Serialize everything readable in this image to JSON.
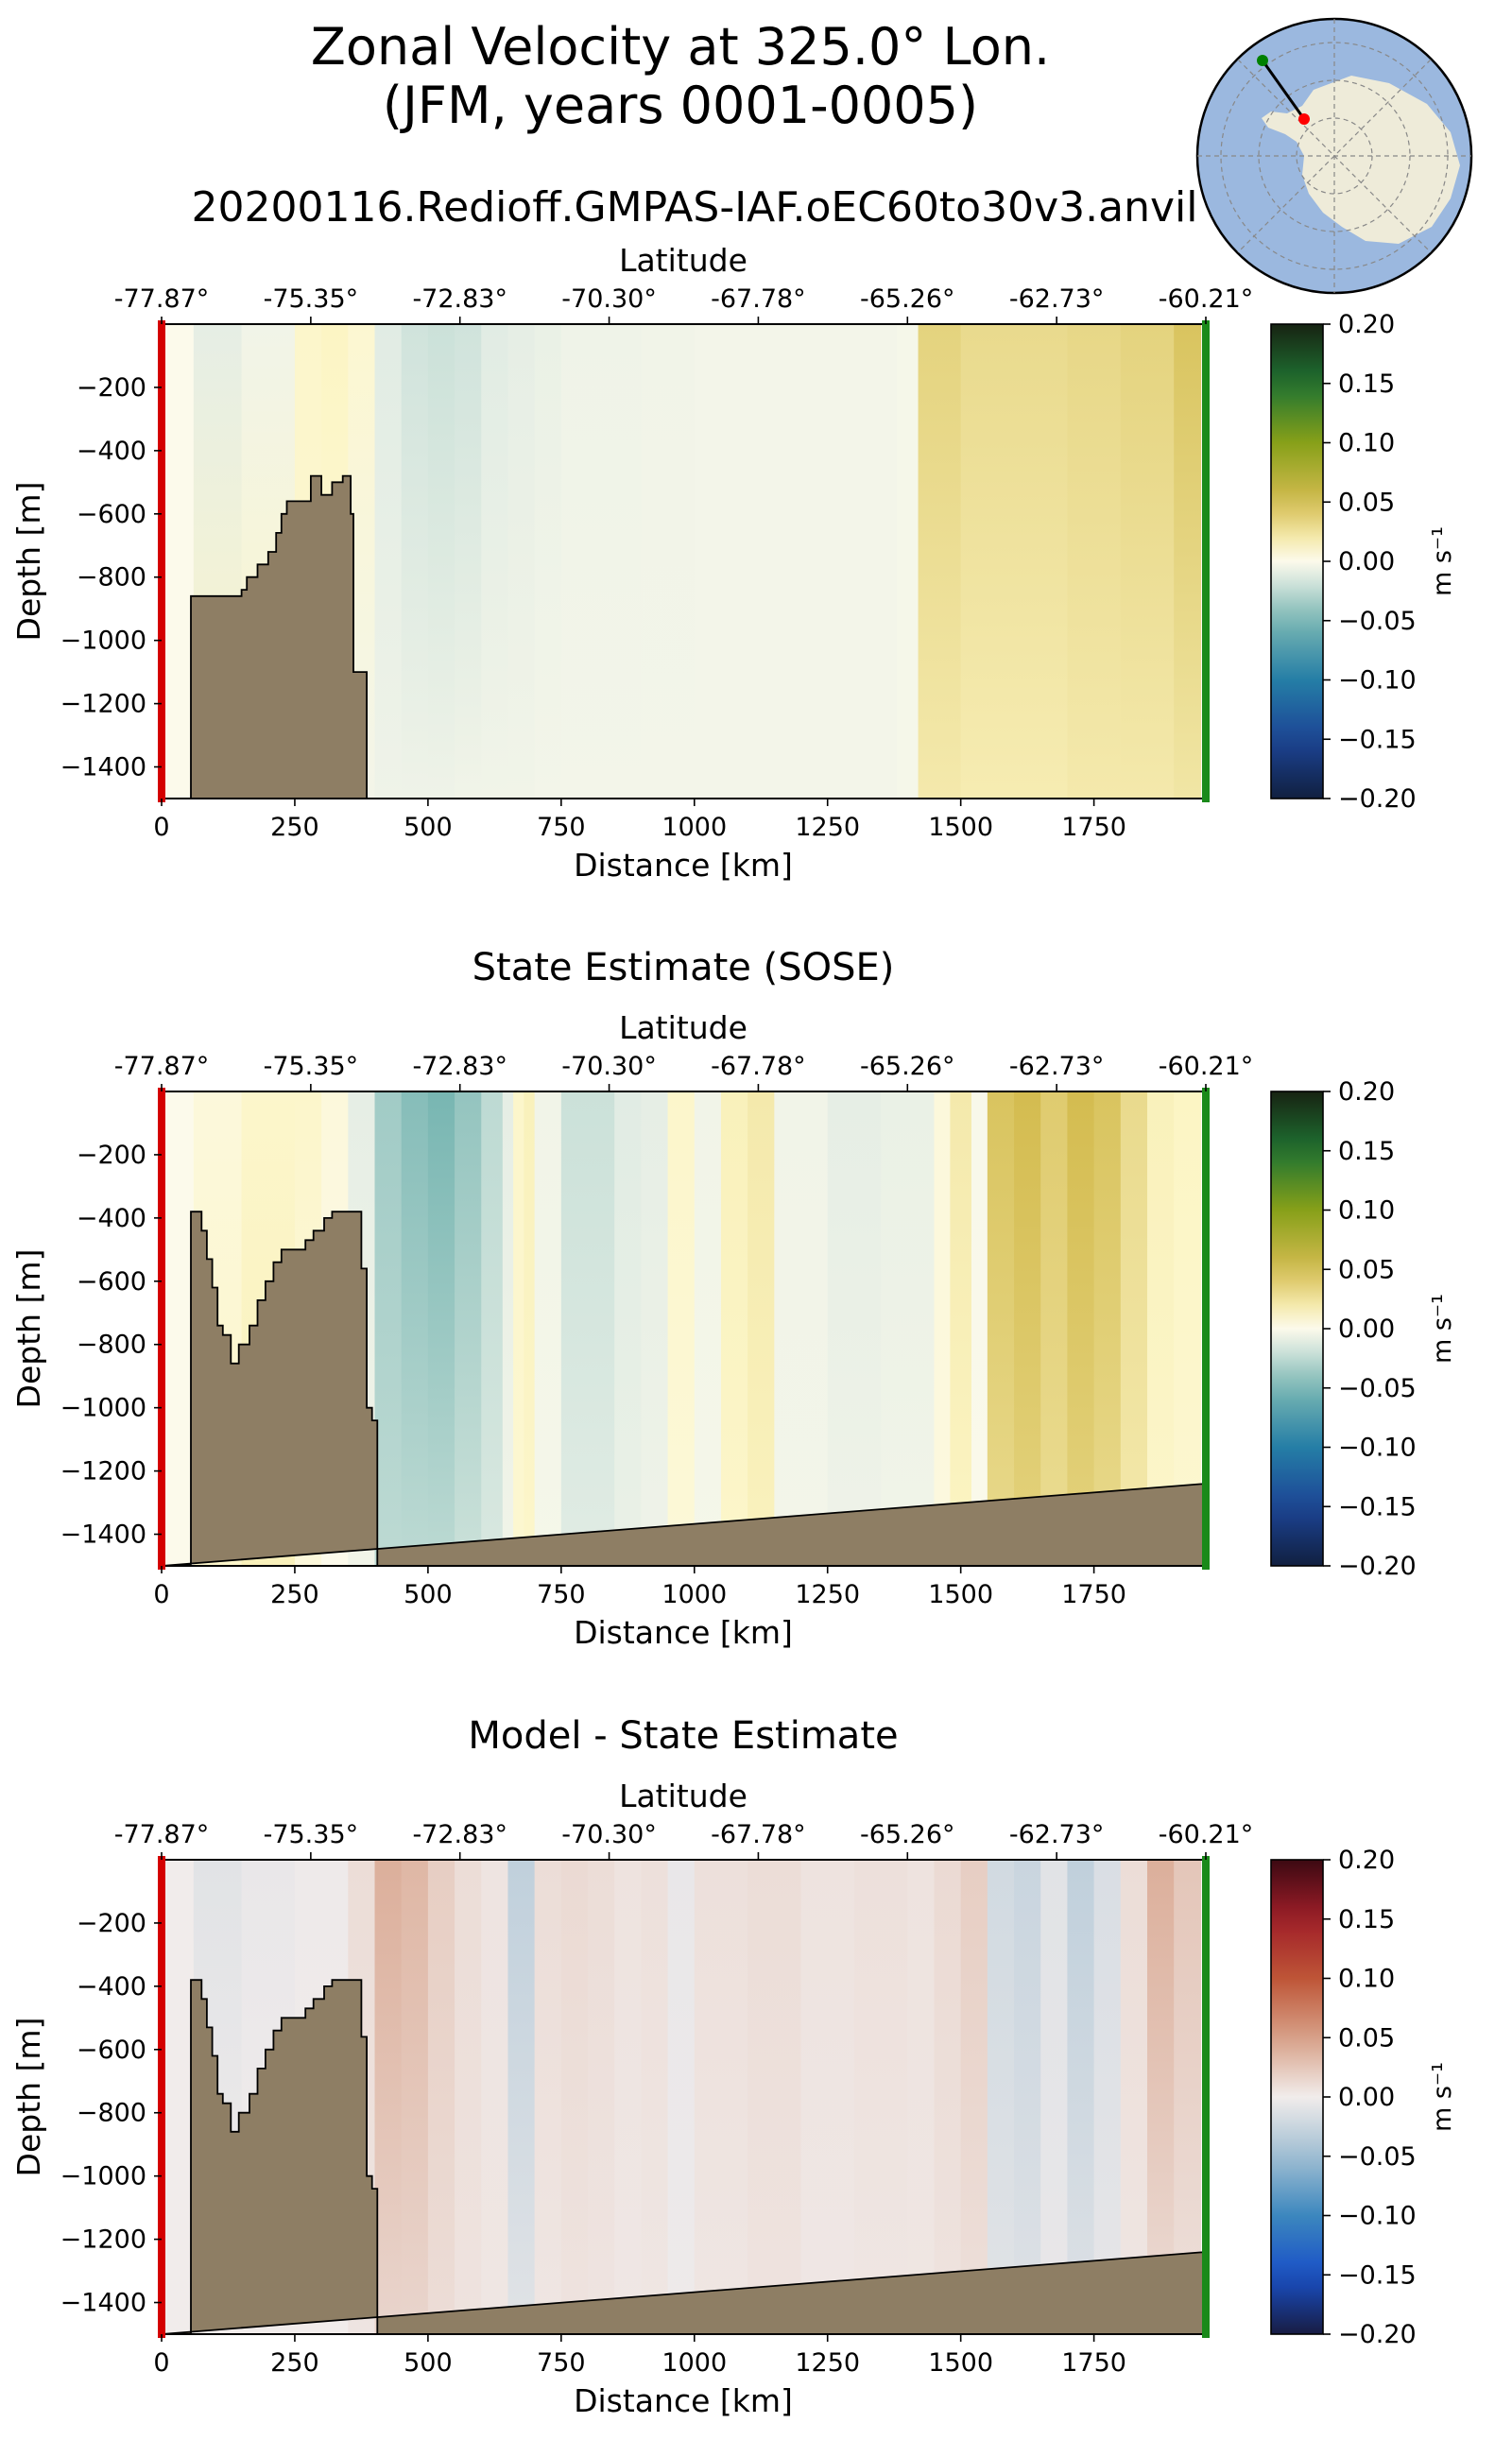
{
  "figure": {
    "title_line1": "Zonal Velocity at 325.0° Lon.",
    "title_line2": "(JFM, years 0001-0005)",
    "run_name": "20200116.Redioff.GMPAS-IAF.oEC60to30v3.anvil"
  },
  "inset_map": {
    "description_icon": "antarctica-polar-map-icon",
    "ocean_color": "#9bb8df",
    "land_color": "#eeebd9",
    "start_marker_color": "#ff0000",
    "end_marker_color": "#008000"
  },
  "colors": {
    "bathymetry": "#8e7e64",
    "start_line": "#d40000",
    "end_line": "#1a8a1a"
  },
  "chart_data": [
    {
      "type": "heatmap",
      "id": "model",
      "title": "",
      "xlabel": "Distance [km]",
      "ylabel": "Depth [m]",
      "top_xlabel": "Latitude",
      "xlim": [
        0,
        1960
      ],
      "ylim": [
        -1500,
        0
      ],
      "x_ticks": [
        0,
        250,
        500,
        750,
        1000,
        1250,
        1500,
        1750
      ],
      "y_ticks": [
        -200,
        -400,
        -600,
        -800,
        -1000,
        -1200,
        -1400
      ],
      "lat_ticks": [
        "-77.87°",
        "-75.35°",
        "-72.83°",
        "-70.30°",
        "-67.78°",
        "-65.26°",
        "-62.73°",
        "-60.21°"
      ],
      "colorbar": {
        "colormap": "delta",
        "label": "m s⁻¹",
        "ticks": [
          "0.20",
          "0.15",
          "0.10",
          "0.05",
          "0.00",
          "−0.05",
          "−0.10",
          "−0.15",
          "−0.20"
        ],
        "vmin": -0.2,
        "vmax": 0.2
      },
      "bathymetry_depth": [
        [
          0,
          -1500
        ],
        [
          55,
          -1500
        ],
        [
          55,
          -860
        ],
        [
          150,
          -860
        ],
        [
          150,
          -840
        ],
        [
          160,
          -840
        ],
        [
          160,
          -800
        ],
        [
          180,
          -800
        ],
        [
          180,
          -760
        ],
        [
          200,
          -760
        ],
        [
          200,
          -720
        ],
        [
          215,
          -720
        ],
        [
          215,
          -660
        ],
        [
          225,
          -660
        ],
        [
          225,
          -600
        ],
        [
          235,
          -600
        ],
        [
          235,
          -560
        ],
        [
          280,
          -560
        ],
        [
          280,
          -480
        ],
        [
          300,
          -480
        ],
        [
          300,
          -540
        ],
        [
          320,
          -540
        ],
        [
          320,
          -500
        ],
        [
          340,
          -500
        ],
        [
          340,
          -480
        ],
        [
          355,
          -480
        ],
        [
          355,
          -600
        ],
        [
          360,
          -600
        ],
        [
          360,
          -1100
        ],
        [
          385,
          -1100
        ],
        [
          385,
          -1500
        ]
      ],
      "velocity_profile": {
        "distance_km": [
          0,
          60,
          150,
          250,
          300,
          350,
          400,
          450,
          500,
          550,
          600,
          650,
          700,
          750,
          800,
          900,
          1000,
          1100,
          1200,
          1300,
          1380,
          1420,
          1500,
          1600,
          1700,
          1800,
          1900,
          1950
        ],
        "u_surface": [
          0,
          -0.01,
          -0.005,
          0.01,
          0.012,
          0.008,
          -0.012,
          -0.018,
          -0.02,
          -0.018,
          -0.012,
          -0.01,
          -0.008,
          -0.006,
          -0.006,
          -0.005,
          -0.004,
          -0.004,
          -0.004,
          -0.004,
          -0.003,
          0.035,
          0.03,
          0.03,
          0.032,
          0.035,
          0.045,
          0.06
        ],
        "u_bottom": [
          0,
          0.01,
          0.01,
          0.008,
          0.006,
          -0.004,
          -0.006,
          -0.006,
          -0.006,
          -0.005,
          -0.005,
          -0.005,
          -0.004,
          -0.004,
          -0.004,
          -0.004,
          -0.004,
          -0.004,
          -0.004,
          -0.004,
          -0.003,
          0.02,
          0.018,
          0.018,
          0.02,
          0.02,
          0.022,
          0.03
        ]
      }
    },
    {
      "type": "heatmap",
      "id": "sose",
      "title": "State Estimate (SOSE)",
      "xlabel": "Distance [km]",
      "ylabel": "Depth [m]",
      "top_xlabel": "Latitude",
      "xlim": [
        0,
        1960
      ],
      "ylim": [
        -1500,
        0
      ],
      "x_ticks": [
        0,
        250,
        500,
        750,
        1000,
        1250,
        1500,
        1750
      ],
      "y_ticks": [
        -200,
        -400,
        -600,
        -800,
        -1000,
        -1200,
        -1400
      ],
      "lat_ticks": [
        "-77.87°",
        "-75.35°",
        "-72.83°",
        "-70.30°",
        "-67.78°",
        "-65.26°",
        "-62.73°",
        "-60.21°"
      ],
      "colorbar": {
        "colormap": "delta",
        "label": "m s⁻¹",
        "ticks": [
          "0.20",
          "0.15",
          "0.10",
          "0.05",
          "0.00",
          "−0.05",
          "−0.10",
          "−0.15",
          "−0.20"
        ],
        "vmin": -0.2,
        "vmax": 0.2
      },
      "bathymetry_depth": [
        [
          0,
          -1500
        ],
        [
          55,
          -1500
        ],
        [
          55,
          -380
        ],
        [
          75,
          -380
        ],
        [
          75,
          -440
        ],
        [
          85,
          -440
        ],
        [
          85,
          -530
        ],
        [
          95,
          -530
        ],
        [
          95,
          -620
        ],
        [
          105,
          -620
        ],
        [
          105,
          -740
        ],
        [
          115,
          -740
        ],
        [
          115,
          -770
        ],
        [
          130,
          -770
        ],
        [
          130,
          -860
        ],
        [
          145,
          -860
        ],
        [
          145,
          -800
        ],
        [
          165,
          -800
        ],
        [
          165,
          -740
        ],
        [
          180,
          -740
        ],
        [
          180,
          -660
        ],
        [
          195,
          -660
        ],
        [
          195,
          -600
        ],
        [
          210,
          -600
        ],
        [
          210,
          -540
        ],
        [
          225,
          -540
        ],
        [
          225,
          -500
        ],
        [
          270,
          -500
        ],
        [
          270,
          -470
        ],
        [
          285,
          -470
        ],
        [
          285,
          -440
        ],
        [
          305,
          -440
        ],
        [
          305,
          -400
        ],
        [
          320,
          -400
        ],
        [
          320,
          -380
        ],
        [
          375,
          -380
        ],
        [
          375,
          -560
        ],
        [
          385,
          -560
        ],
        [
          385,
          -1000
        ],
        [
          395,
          -1000
        ],
        [
          395,
          -1040
        ],
        [
          405,
          -1040
        ],
        [
          405,
          -1500
        ],
        [
          1955,
          -1500
        ],
        [
          1955,
          -1240
        ],
        [
          1960,
          -1240
        ]
      ],
      "velocity_profile": {
        "distance_km": [
          0,
          60,
          150,
          250,
          300,
          350,
          400,
          450,
          500,
          550,
          600,
          640,
          660,
          680,
          700,
          750,
          800,
          850,
          900,
          950,
          1000,
          1050,
          1100,
          1150,
          1250,
          1350,
          1450,
          1480,
          1520,
          1550,
          1600,
          1650,
          1700,
          1750,
          1800,
          1850,
          1900,
          1950
        ],
        "u_surface": [
          0,
          0.005,
          0.01,
          0.01,
          0.005,
          -0.01,
          -0.035,
          -0.045,
          -0.05,
          -0.04,
          -0.025,
          -0.01,
          0.01,
          0.015,
          -0.005,
          -0.02,
          -0.02,
          -0.012,
          -0.01,
          0.01,
          -0.005,
          0.015,
          0.02,
          -0.005,
          -0.01,
          -0.008,
          0.005,
          0.02,
          -0.002,
          0.045,
          0.05,
          0.04,
          0.05,
          0.045,
          0.03,
          0.015,
          0.012,
          0.008
        ],
        "u_bottom": [
          0,
          0.01,
          0.015,
          0.005,
          0.0,
          -0.005,
          -0.025,
          -0.025,
          -0.025,
          -0.02,
          -0.015,
          -0.005,
          0.008,
          0.01,
          -0.003,
          -0.012,
          -0.012,
          -0.008,
          -0.006,
          0.006,
          -0.003,
          0.01,
          0.014,
          -0.004,
          -0.006,
          -0.005,
          0.004,
          0.012,
          -0.001,
          0.03,
          0.035,
          0.028,
          0.035,
          0.03,
          0.02,
          0.01,
          0.008,
          0.005
        ]
      }
    },
    {
      "type": "heatmap",
      "id": "difference",
      "title": "Model - State Estimate",
      "xlabel": "Distance [km]",
      "ylabel": "Depth [m]",
      "top_xlabel": "Latitude",
      "xlim": [
        0,
        1960
      ],
      "ylim": [
        -1500,
        0
      ],
      "x_ticks": [
        0,
        250,
        500,
        750,
        1000,
        1250,
        1500,
        1750
      ],
      "y_ticks": [
        -200,
        -400,
        -600,
        -800,
        -1000,
        -1200,
        -1400
      ],
      "lat_ticks": [
        "-77.87°",
        "-75.35°",
        "-72.83°",
        "-70.30°",
        "-67.78°",
        "-65.26°",
        "-62.73°",
        "-60.21°"
      ],
      "colorbar": {
        "colormap": "balance",
        "label": "m s⁻¹",
        "ticks": [
          "0.20",
          "0.15",
          "0.10",
          "0.05",
          "0.00",
          "−0.05",
          "−0.10",
          "−0.15",
          "−0.20"
        ],
        "vmin": -0.2,
        "vmax": 0.2
      },
      "bathymetry_depth": [
        [
          0,
          -1500
        ],
        [
          55,
          -1500
        ],
        [
          55,
          -380
        ],
        [
          75,
          -380
        ],
        [
          75,
          -440
        ],
        [
          85,
          -440
        ],
        [
          85,
          -530
        ],
        [
          95,
          -530
        ],
        [
          95,
          -620
        ],
        [
          105,
          -620
        ],
        [
          105,
          -740
        ],
        [
          115,
          -740
        ],
        [
          115,
          -770
        ],
        [
          130,
          -770
        ],
        [
          130,
          -860
        ],
        [
          145,
          -860
        ],
        [
          145,
          -800
        ],
        [
          165,
          -800
        ],
        [
          165,
          -740
        ],
        [
          180,
          -740
        ],
        [
          180,
          -660
        ],
        [
          195,
          -660
        ],
        [
          195,
          -600
        ],
        [
          210,
          -600
        ],
        [
          210,
          -540
        ],
        [
          225,
          -540
        ],
        [
          225,
          -500
        ],
        [
          270,
          -500
        ],
        [
          270,
          -470
        ],
        [
          285,
          -470
        ],
        [
          285,
          -440
        ],
        [
          305,
          -440
        ],
        [
          305,
          -400
        ],
        [
          320,
          -400
        ],
        [
          320,
          -380
        ],
        [
          375,
          -380
        ],
        [
          375,
          -560
        ],
        [
          385,
          -560
        ],
        [
          385,
          -1000
        ],
        [
          395,
          -1000
        ],
        [
          395,
          -1040
        ],
        [
          405,
          -1040
        ],
        [
          405,
          -1500
        ],
        [
          1955,
          -1500
        ],
        [
          1955,
          -1240
        ],
        [
          1960,
          -1240
        ]
      ],
      "velocity_profile": {
        "distance_km": [
          0,
          60,
          150,
          250,
          350,
          400,
          450,
          500,
          550,
          600,
          650,
          700,
          750,
          800,
          850,
          900,
          950,
          1000,
          1100,
          1200,
          1300,
          1400,
          1450,
          1500,
          1550,
          1600,
          1650,
          1700,
          1750,
          1800,
          1850,
          1900,
          1950
        ],
        "u_surface": [
          0,
          -0.01,
          -0.005,
          -0.002,
          0.01,
          0.04,
          0.035,
          0.02,
          0.01,
          0.005,
          -0.03,
          0.01,
          0.012,
          0.01,
          0.006,
          0.008,
          -0.005,
          0.008,
          0.01,
          0.006,
          0.008,
          0.006,
          0.012,
          0.02,
          -0.02,
          -0.025,
          -0.01,
          -0.03,
          -0.015,
          0.01,
          0.04,
          0.025,
          0.01
        ],
        "u_bottom": [
          0,
          0.0,
          0.0,
          0.0,
          0.005,
          0.015,
          0.015,
          0.01,
          0.006,
          0.004,
          -0.01,
          0.004,
          0.006,
          0.005,
          0.003,
          0.004,
          -0.002,
          0.004,
          0.006,
          0.003,
          0.004,
          0.004,
          0.006,
          0.008,
          -0.01,
          -0.012,
          -0.005,
          -0.012,
          -0.006,
          0.004,
          0.01,
          0.008,
          0.004
        ]
      }
    }
  ]
}
